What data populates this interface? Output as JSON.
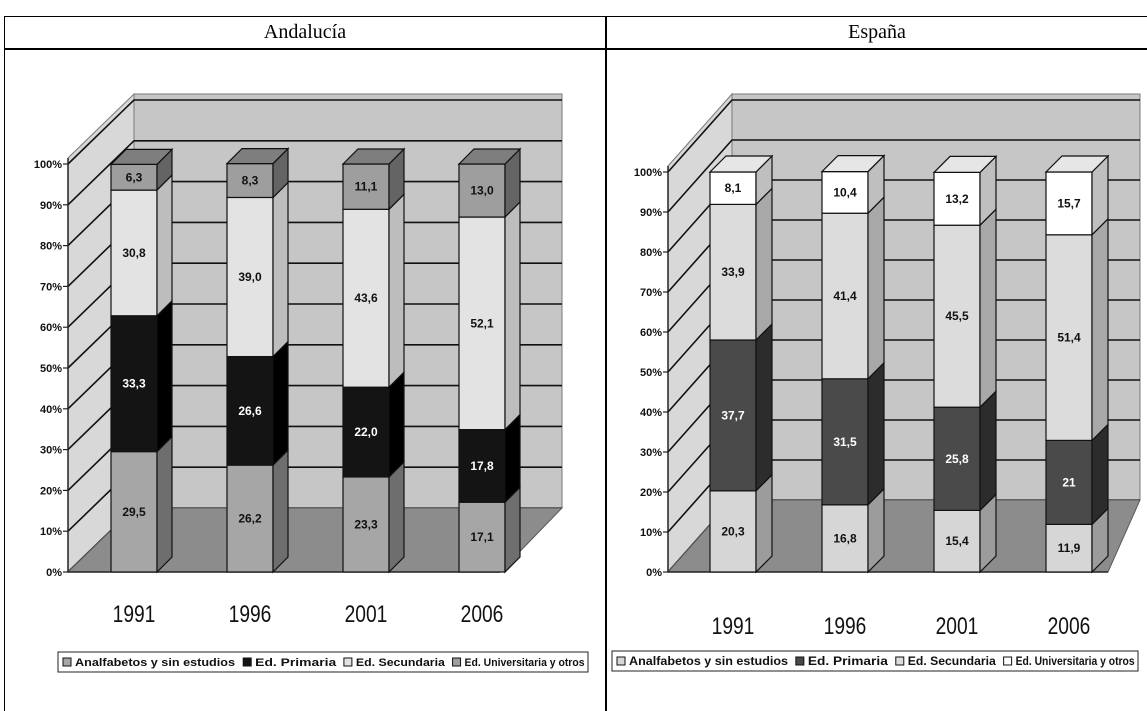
{
  "table": {
    "headers": [
      "Andalucía",
      "España"
    ]
  },
  "colors": {
    "floor": "#8c8c8c",
    "wall": "#c6c6c6",
    "side": "#d8d8d8"
  },
  "chart_data": [
    {
      "type": "bar",
      "stacked": true,
      "three_d": true,
      "categories": [
        "1991",
        "1996",
        "2001",
        "2006"
      ],
      "y_ticks": [
        "0%",
        "10%",
        "20%",
        "30%",
        "40%",
        "50%",
        "60%",
        "70%",
        "80%",
        "90%",
        "100%"
      ],
      "ylim": [
        0,
        100
      ],
      "grid": true,
      "legend_position": "bottom",
      "series": [
        {
          "name": "Analfabetos y sin estudios",
          "labels": [
            "29,5",
            "26,2",
            "23,3",
            "17,1"
          ],
          "values": [
            29.5,
            26.2,
            23.3,
            17.1
          ],
          "color": "#a6a6a6",
          "top": "#8a8a8a",
          "side": "#6e6e6e",
          "text": "#111111"
        },
        {
          "name": "Ed. Primaria",
          "labels": [
            "33,3",
            "26,6",
            "22,0",
            "17,8"
          ],
          "values": [
            33.3,
            26.6,
            22.0,
            17.8
          ],
          "color": "#141414",
          "top": "#2a2a2a",
          "side": "#000000",
          "text": "#ffffff"
        },
        {
          "name": "Ed. Secundaria",
          "labels": [
            "30,8",
            "39,0",
            "43,6",
            "52,1"
          ],
          "values": [
            30.8,
            39.0,
            43.6,
            52.1
          ],
          "color": "#e3e3e3",
          "top": "#d2d2d2",
          "side": "#bdbdbd",
          "text": "#111111"
        },
        {
          "name": "Ed. Universitaria y otros",
          "labels": [
            "6,3",
            "8,3",
            "11,1",
            "13,0"
          ],
          "values": [
            6.3,
            8.3,
            11.1,
            13.0
          ],
          "color": "#9e9e9e",
          "top": "#7e7e7e",
          "side": "#646464",
          "text": "#111111"
        }
      ]
    },
    {
      "type": "bar",
      "stacked": true,
      "three_d": true,
      "categories": [
        "1991",
        "1996",
        "2001",
        "2006"
      ],
      "y_ticks": [
        "0%",
        "10%",
        "20%",
        "30%",
        "40%",
        "50%",
        "60%",
        "70%",
        "80%",
        "90%",
        "100%"
      ],
      "ylim": [
        0,
        100
      ],
      "grid": true,
      "legend_position": "bottom",
      "series": [
        {
          "name": "Analfabetos y sin estudios",
          "labels": [
            "20,3",
            "16,8",
            "15,4",
            "11,9"
          ],
          "values": [
            20.3,
            16.8,
            15.4,
            11.9
          ],
          "color": "#d6d6d6",
          "top": "#c4c4c4",
          "side": "#9c9c9c",
          "text": "#111111"
        },
        {
          "name": "Ed. Primaria",
          "labels": [
            "37,7",
            "31,5",
            "25,8",
            "21"
          ],
          "values": [
            37.7,
            31.5,
            25.8,
            21.0
          ],
          "color": "#4a4a4a",
          "top": "#5e5e5e",
          "side": "#2c2c2c",
          "text": "#ffffff"
        },
        {
          "name": "Ed. Secundaria",
          "labels": [
            "33,9",
            "41,4",
            "45,5",
            "51,4"
          ],
          "values": [
            33.9,
            41.4,
            45.5,
            51.4
          ],
          "color": "#dcdcdc",
          "top": "#cacaca",
          "side": "#a8a8a8",
          "text": "#111111"
        },
        {
          "name": "Ed. Universitaria y otros",
          "labels": [
            "8,1",
            "10,4",
            "13,2",
            "15,7"
          ],
          "values": [
            8.1,
            10.4,
            13.2,
            15.7
          ],
          "color": "#ffffff",
          "top": "#e6e6e6",
          "side": "#bfbfbf",
          "text": "#111111"
        }
      ]
    }
  ]
}
